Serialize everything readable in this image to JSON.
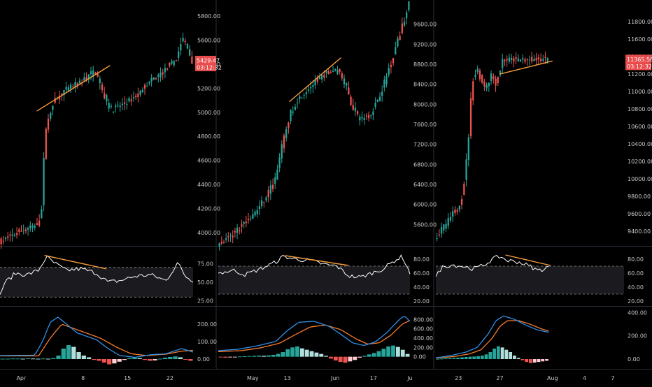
{
  "colors": {
    "background": "#000000",
    "up": "#26a69a",
    "down": "#ef5350",
    "trendline": "#f39c3c",
    "rsi_line": "#ffffff",
    "macd_line": "#2f8fe8",
    "signal_line": "#f57c2c",
    "axis_text": "#c8c8c8",
    "price_label_bg": "#e84b4b"
  },
  "chart_data": [
    {
      "type": "candlestick",
      "panel": "left",
      "price_ticks": [
        "5800.00",
        "5600.00",
        "5400.00",
        "5200.00",
        "5000.00",
        "4800.00",
        "4600.00",
        "4400.00",
        "4200.00",
        "4000.00"
      ],
      "price_range": [
        3900,
        5900
      ],
      "last_price": "5429.47",
      "countdown": "03:12:32",
      "x_labels": [
        "Apr",
        "8",
        "15",
        "22"
      ],
      "price_path": [
        [
          0,
          3920
        ],
        [
          0.05,
          3960
        ],
        [
          0.12,
          4020
        ],
        [
          0.2,
          4060
        ],
        [
          0.22,
          4180
        ],
        [
          0.24,
          4850
        ],
        [
          0.28,
          5080
        ],
        [
          0.34,
          5180
        ],
        [
          0.42,
          5250
        ],
        [
          0.5,
          5350
        ],
        [
          0.54,
          5150
        ],
        [
          0.58,
          5020
        ],
        [
          0.66,
          5080
        ],
        [
          0.72,
          5150
        ],
        [
          0.78,
          5250
        ],
        [
          0.86,
          5350
        ],
        [
          0.92,
          5450
        ],
        [
          0.95,
          5620
        ],
        [
          0.97,
          5560
        ],
        [
          1,
          5430
        ]
      ],
      "trendline": [
        [
          0.19,
          5010
        ],
        [
          0.57,
          5390
        ]
      ],
      "rsi": {
        "ticks": [
          "75.00",
          "50.00",
          "25.00"
        ],
        "range": [
          20,
          95
        ],
        "band": [
          30,
          70
        ],
        "path": [
          [
            0,
            32
          ],
          [
            0.02,
            48
          ],
          [
            0.08,
            62
          ],
          [
            0.14,
            60
          ],
          [
            0.2,
            66
          ],
          [
            0.24,
            84
          ],
          [
            0.28,
            76
          ],
          [
            0.34,
            66
          ],
          [
            0.42,
            68
          ],
          [
            0.5,
            62
          ],
          [
            0.56,
            50
          ],
          [
            0.62,
            52
          ],
          [
            0.7,
            58
          ],
          [
            0.78,
            60
          ],
          [
            0.86,
            52
          ],
          [
            0.92,
            76
          ],
          [
            0.96,
            58
          ],
          [
            1,
            52
          ]
        ],
        "trendline": [
          [
            0.23,
            86
          ],
          [
            0.55,
            68
          ]
        ]
      },
      "macd": {
        "ticks": [
          "200.00",
          "100.00",
          "0.00"
        ],
        "range": [
          -40,
          280
        ],
        "macd_path": [
          [
            0,
            20
          ],
          [
            0.18,
            22
          ],
          [
            0.22,
            100
          ],
          [
            0.26,
            210
          ],
          [
            0.3,
            240
          ],
          [
            0.4,
            150
          ],
          [
            0.5,
            110
          ],
          [
            0.56,
            60
          ],
          [
            0.62,
            20
          ],
          [
            0.7,
            10
          ],
          [
            0.78,
            25
          ],
          [
            0.86,
            30
          ],
          [
            0.94,
            60
          ],
          [
            1,
            40
          ]
        ],
        "signal_path": [
          [
            0,
            18
          ],
          [
            0.2,
            18
          ],
          [
            0.26,
            120
          ],
          [
            0.32,
            200
          ],
          [
            0.42,
            160
          ],
          [
            0.52,
            120
          ],
          [
            0.6,
            70
          ],
          [
            0.68,
            30
          ],
          [
            0.76,
            20
          ],
          [
            0.86,
            28
          ],
          [
            0.94,
            45
          ],
          [
            1,
            50
          ]
        ],
        "hist": [
          2,
          2,
          3,
          3,
          2,
          4,
          3,
          2,
          3,
          2,
          5,
          20,
          60,
          80,
          70,
          40,
          20,
          10,
          -5,
          -10,
          -20,
          -30,
          -25,
          -15,
          -5,
          5,
          10,
          5,
          -5,
          -10,
          -8,
          2,
          8,
          12,
          15,
          10,
          -3,
          -10
        ]
      }
    },
    {
      "type": "candlestick",
      "panel": "middle",
      "price_ticks": [
        "9600.00",
        "9200.00",
        "8800.00",
        "8400.00",
        "8000.00",
        "7600.00",
        "7200.00",
        "6800.00",
        "6400.00",
        "6000.00",
        "5600.00"
      ],
      "price_range": [
        5200,
        10000
      ],
      "x_labels": [
        "May",
        "13",
        "Jun",
        "17",
        "Ju"
      ],
      "price_path": [
        [
          0,
          5200
        ],
        [
          0.06,
          5350
        ],
        [
          0.12,
          5550
        ],
        [
          0.2,
          5850
        ],
        [
          0.26,
          6200
        ],
        [
          0.3,
          6500
        ],
        [
          0.34,
          7200
        ],
        [
          0.38,
          7800
        ],
        [
          0.42,
          8100
        ],
        [
          0.5,
          8400
        ],
        [
          0.56,
          8600
        ],
        [
          0.62,
          8700
        ],
        [
          0.66,
          8500
        ],
        [
          0.7,
          8000
        ],
        [
          0.74,
          7700
        ],
        [
          0.8,
          7800
        ],
        [
          0.86,
          8300
        ],
        [
          0.92,
          9000
        ],
        [
          0.96,
          9500
        ],
        [
          1,
          10000
        ]
      ],
      "trendline": [
        [
          0.37,
          8050
        ],
        [
          0.64,
          8930
        ]
      ],
      "rsi": {
        "ticks": [
          "80.00",
          "60.00",
          "40.00",
          "20.00"
        ],
        "range": [
          15,
          95
        ],
        "band": [
          30,
          70
        ],
        "path": [
          [
            0,
            60
          ],
          [
            0.08,
            64
          ],
          [
            0.14,
            58
          ],
          [
            0.22,
            66
          ],
          [
            0.3,
            76
          ],
          [
            0.34,
            84
          ],
          [
            0.4,
            80
          ],
          [
            0.48,
            78
          ],
          [
            0.56,
            72
          ],
          [
            0.62,
            70
          ],
          [
            0.68,
            56
          ],
          [
            0.74,
            54
          ],
          [
            0.8,
            60
          ],
          [
            0.86,
            66
          ],
          [
            0.92,
            78
          ],
          [
            0.96,
            84
          ],
          [
            1,
            60
          ]
        ],
        "trendline": [
          [
            0.35,
            85
          ],
          [
            0.68,
            71
          ]
        ]
      },
      "macd": {
        "ticks": [
          "800.00",
          "600.00",
          "400.00",
          "200.00",
          "0.00"
        ],
        "range": [
          -200,
          1000
        ],
        "macd_path": [
          [
            0,
            130
          ],
          [
            0.1,
            160
          ],
          [
            0.2,
            230
          ],
          [
            0.3,
            330
          ],
          [
            0.36,
            560
          ],
          [
            0.42,
            740
          ],
          [
            0.5,
            760
          ],
          [
            0.58,
            650
          ],
          [
            0.64,
            480
          ],
          [
            0.7,
            300
          ],
          [
            0.76,
            240
          ],
          [
            0.82,
            320
          ],
          [
            0.88,
            520
          ],
          [
            0.94,
            780
          ],
          [
            0.97,
            880
          ],
          [
            1,
            760
          ]
        ],
        "signal_path": [
          [
            0,
            110
          ],
          [
            0.12,
            130
          ],
          [
            0.22,
            190
          ],
          [
            0.32,
            290
          ],
          [
            0.4,
            470
          ],
          [
            0.48,
            640
          ],
          [
            0.56,
            680
          ],
          [
            0.64,
            580
          ],
          [
            0.72,
            380
          ],
          [
            0.78,
            270
          ],
          [
            0.84,
            300
          ],
          [
            0.9,
            460
          ],
          [
            0.96,
            700
          ],
          [
            1,
            780
          ]
        ],
        "hist": [
          -15,
          -20,
          -10,
          -5,
          5,
          10,
          15,
          20,
          25,
          20,
          30,
          40,
          60,
          100,
          160,
          200,
          220,
          180,
          150,
          120,
          90,
          60,
          20,
          -40,
          -80,
          -110,
          -130,
          -100,
          -70,
          -20,
          20,
          50,
          80,
          120,
          170,
          220,
          240,
          210,
          150,
          60
        ]
      }
    },
    {
      "type": "candlestick",
      "panel": "right",
      "price_ticks": [
        "11800.00",
        "11600.00",
        "11400.00",
        "11200.00",
        "11000.00",
        "10800.00",
        "10600.00",
        "10400.00",
        "10200.00",
        "10000.00",
        "9800.00",
        "9600.00",
        "9400.00"
      ],
      "price_range": [
        9250,
        12000
      ],
      "last_price": "11365.56",
      "countdown": "03:12:32",
      "x_labels": [
        "23",
        "27",
        "Aug",
        "4",
        "7"
      ],
      "price_path": [
        [
          0,
          9300
        ],
        [
          0.06,
          9420
        ],
        [
          0.12,
          9520
        ],
        [
          0.16,
          9600
        ],
        [
          0.2,
          9650
        ],
        [
          0.24,
          9800
        ],
        [
          0.27,
          10050
        ],
        [
          0.3,
          10500
        ],
        [
          0.32,
          10900
        ],
        [
          0.34,
          11150
        ],
        [
          0.38,
          11250
        ],
        [
          0.42,
          11100
        ],
        [
          0.46,
          11050
        ],
        [
          0.5,
          11200
        ],
        [
          0.54,
          11100
        ],
        [
          0.58,
          11250
        ],
        [
          0.6,
          11365
        ]
      ],
      "trendline": [
        [
          0.34,
          11200
        ],
        [
          0.62,
          11350
        ]
      ],
      "rsi": {
        "ticks": [
          "80.00",
          "60.00",
          "40.00",
          "20.00"
        ],
        "range": [
          15,
          95
        ],
        "band": [
          30,
          70
        ],
        "path": [
          [
            0,
            54
          ],
          [
            0.03,
            68
          ],
          [
            0.08,
            72
          ],
          [
            0.14,
            70
          ],
          [
            0.2,
            66
          ],
          [
            0.26,
            72
          ],
          [
            0.3,
            80
          ],
          [
            0.34,
            84
          ],
          [
            0.38,
            78
          ],
          [
            0.44,
            76
          ],
          [
            0.5,
            70
          ],
          [
            0.54,
            64
          ],
          [
            0.58,
            66
          ],
          [
            0.6,
            70
          ]
        ],
        "trendline": [
          [
            0.37,
            86
          ],
          [
            0.61,
            71
          ]
        ]
      },
      "macd": {
        "ticks": [
          "400.00",
          "200.00",
          "0.00"
        ],
        "range": [
          -60,
          420
        ],
        "macd_path": [
          [
            0,
            10
          ],
          [
            0.08,
            30
          ],
          [
            0.16,
            60
          ],
          [
            0.22,
            100
          ],
          [
            0.28,
            220
          ],
          [
            0.32,
            330
          ],
          [
            0.36,
            370
          ],
          [
            0.42,
            340
          ],
          [
            0.48,
            290
          ],
          [
            0.54,
            250
          ],
          [
            0.6,
            230
          ]
        ],
        "signal_path": [
          [
            0,
            8
          ],
          [
            0.1,
            22
          ],
          [
            0.18,
            45
          ],
          [
            0.24,
            80
          ],
          [
            0.3,
            180
          ],
          [
            0.34,
            280
          ],
          [
            0.38,
            330
          ],
          [
            0.44,
            330
          ],
          [
            0.5,
            300
          ],
          [
            0.56,
            260
          ],
          [
            0.6,
            240
          ]
        ],
        "hist": [
          2,
          4,
          6,
          8,
          10,
          12,
          15,
          18,
          20,
          22,
          25,
          30,
          40,
          60,
          90,
          110,
          100,
          80,
          60,
          30,
          10,
          -10,
          -25,
          -35,
          -30,
          -25,
          -20,
          -15
        ]
      }
    }
  ]
}
